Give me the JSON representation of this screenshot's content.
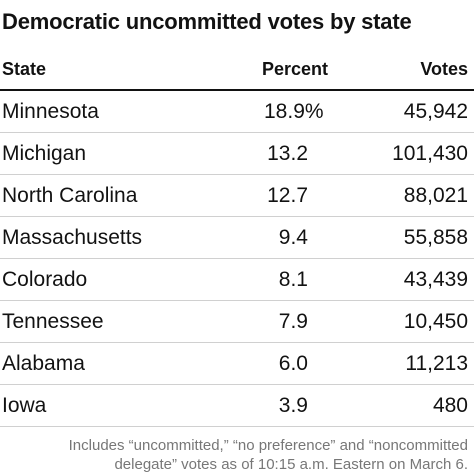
{
  "chart_data": {
    "type": "table",
    "title": "Democratic uncommitted votes by state",
    "columns": [
      "State",
      "Percent",
      "Votes"
    ],
    "rows": [
      {
        "state": "Minnesota",
        "percent": "18.9%",
        "votes": "45,942"
      },
      {
        "state": "Michigan",
        "percent": "13.2",
        "votes": "101,430"
      },
      {
        "state": "North Carolina",
        "percent": "12.7",
        "votes": "88,021"
      },
      {
        "state": "Massachusetts",
        "percent": "9.4",
        "votes": "55,858"
      },
      {
        "state": "Colorado",
        "percent": "8.1",
        "votes": "43,439"
      },
      {
        "state": "Tennessee",
        "percent": "7.9",
        "votes": "10,450"
      },
      {
        "state": "Alabama",
        "percent": "6.0",
        "votes": "11,213"
      },
      {
        "state": "Iowa",
        "percent": "3.9",
        "votes": "480"
      }
    ],
    "note_lines": [
      "Includes “uncommitted,” “no preference” and “noncommitted",
      "delegate” votes as of 10:15 a.m. Eastern on March 6."
    ]
  }
}
